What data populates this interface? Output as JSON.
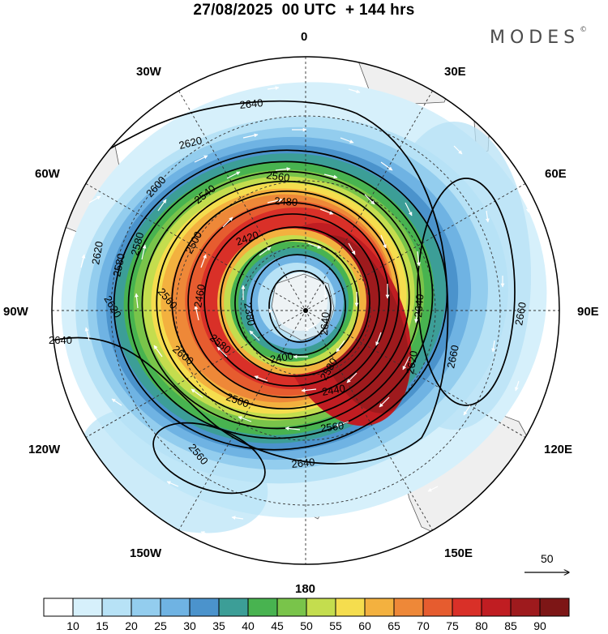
{
  "header": {
    "title": "27/08/2025  00 UTC  + 144 hrs",
    "brand": "MODES",
    "brand_mark": "©"
  },
  "map": {
    "projection": "south polar stereographic",
    "longitude_labels": {
      "top": "0",
      "top_right": "30E",
      "upper_right": "60E",
      "right": "90E",
      "lower_right": "120E",
      "bottom_right": "150E",
      "bottom": "180",
      "bottom_left": "150W",
      "lower_left": "120W",
      "left": "90W",
      "upper_left": "60W",
      "top_left": "30W"
    },
    "field": "geopotential height contours with wind speed shading and wind vectors",
    "contour_labels": [
      "2640",
      "2620",
      "2600",
      "2580",
      "2560",
      "2540",
      "2500",
      "2480",
      "2460",
      "2420",
      "2400",
      "2380",
      "2440",
      "2500",
      "2560",
      "2580",
      "2620",
      "2640",
      "2660",
      "2640",
      "2620",
      "2600",
      "2580",
      "2560",
      "2660",
      "2640",
      "2620",
      "2640",
      "2580",
      "2560"
    ],
    "reference_vector": "50"
  },
  "colorbar": {
    "labels": [
      "10",
      "15",
      "20",
      "25",
      "30",
      "35",
      "40",
      "45",
      "50",
      "55",
      "60",
      "65",
      "70",
      "75",
      "80",
      "85",
      "90"
    ],
    "colors": [
      "#ffffff",
      "#d6f0fb",
      "#b7e2f6",
      "#93cdee",
      "#6fb3e3",
      "#4b93cc",
      "#3c9e97",
      "#48b350",
      "#79c44a",
      "#c4dd4e",
      "#f5dd4e",
      "#f3b13f",
      "#ee8838",
      "#e65c2f",
      "#d93028",
      "#c01d22",
      "#9e1a1d",
      "#7d1616"
    ]
  }
}
